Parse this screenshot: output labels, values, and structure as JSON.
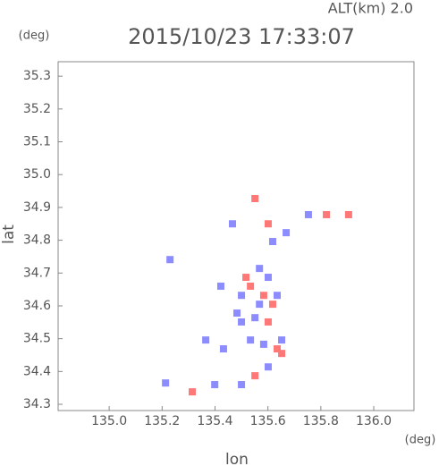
{
  "chart_data": {
    "type": "scatter",
    "title": "2015/10/23 17:33:07",
    "subtitle": "ALT(km) 2.0",
    "x_label": "lon",
    "x_unit": "(deg)",
    "y_label": "lat",
    "y_unit": "(deg)",
    "xlim": [
      134.807,
      136.152
    ],
    "ylim": [
      34.281,
      35.344
    ],
    "xticks": [
      {
        "value": 135,
        "label": "135.0"
      },
      135.2,
      135.4,
      135.6,
      135.8,
      {
        "value": 136,
        "label": "136.0"
      }
    ],
    "yticks": [
      34.3,
      34.4,
      34.5,
      34.6,
      34.7,
      34.8,
      34.9,
      {
        "value": 35,
        "label": "35.0"
      },
      35.1,
      35.2,
      35.3
    ],
    "series": [
      {
        "color": "#8c8cff",
        "x": [
          135.422,
          135.5,
          135.483,
          135.568,
          135.601,
          135.534,
          135.584,
          135.601,
          135.213,
          135.365,
          135.432,
          135.399,
          135.5,
          135.618,
          135.669,
          135.466,
          135.753,
          135.23,
          135.568,
          135.5,
          135.635,
          135.551,
          135.652
        ],
        "values": [
          34.66,
          34.632,
          34.578,
          34.605,
          34.687,
          34.496,
          34.483,
          34.414,
          34.365,
          34.496,
          34.469,
          34.36,
          34.36,
          34.796,
          34.823,
          34.85,
          34.878,
          34.741,
          34.714,
          34.551,
          34.632,
          34.564,
          34.496
        ]
      },
      {
        "color": "#ff7878",
        "x": [
          135.551,
          135.584,
          135.618,
          135.534,
          135.635,
          135.652,
          135.551,
          135.314,
          135.821,
          135.905,
          135.601,
          135.517,
          135.601
        ],
        "values": [
          34.927,
          34.632,
          34.605,
          34.66,
          34.469,
          34.455,
          34.387,
          34.338,
          34.878,
          34.878,
          34.85,
          34.687,
          34.551
        ]
      }
    ]
  }
}
